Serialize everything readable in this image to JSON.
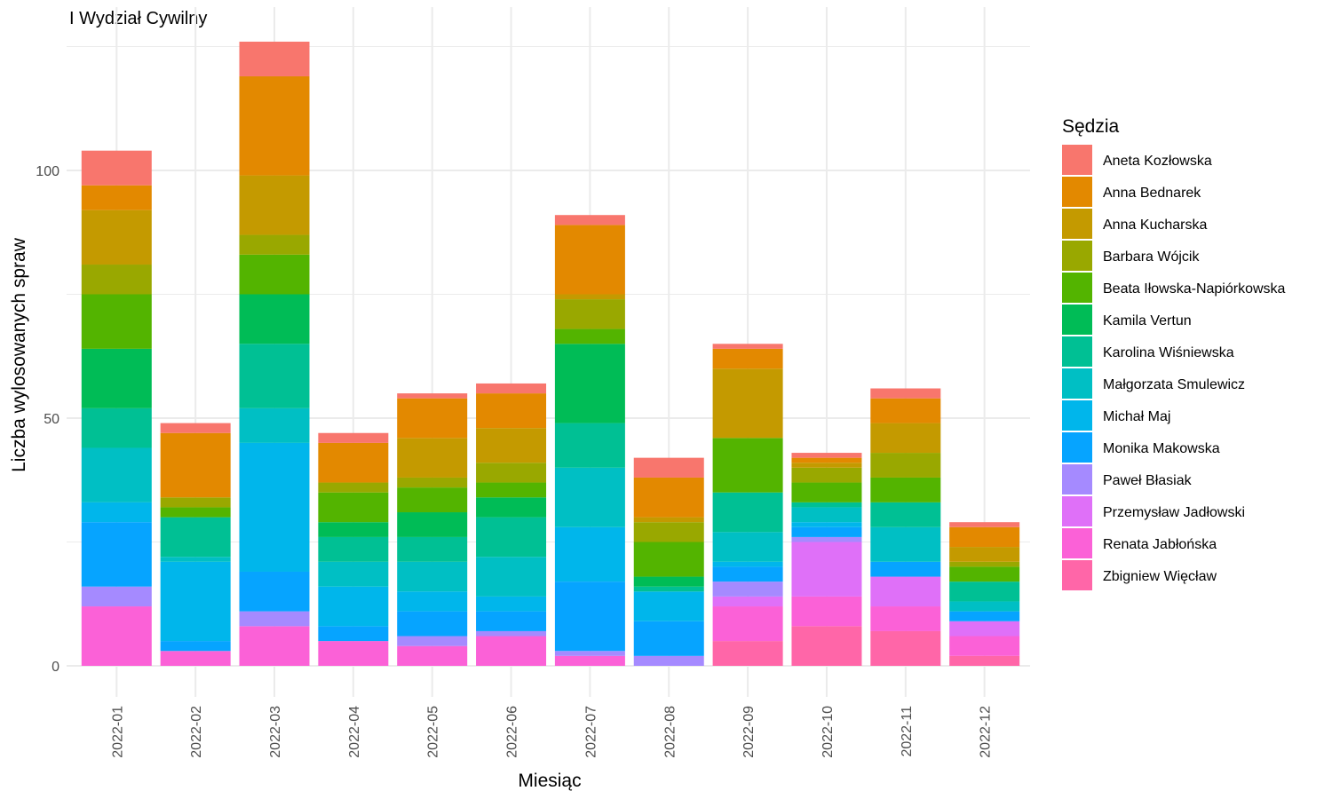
{
  "chart_data": {
    "type": "bar",
    "stacked": true,
    "title": "I Wydział Cywilny",
    "xlabel": "Miesiąc",
    "ylabel": "Liczba wylosowanych spraw",
    "ylim": [
      0,
      127
    ],
    "yticks": [
      0,
      50,
      100
    ],
    "grid": true,
    "legend_title": "Sędzia",
    "legend_position": "right",
    "categories": [
      "2022-01",
      "2022-02",
      "2022-03",
      "2022-04",
      "2022-05",
      "2022-06",
      "2022-07",
      "2022-08",
      "2022-09",
      "2022-10",
      "2022-11",
      "2022-12"
    ],
    "series": [
      {
        "name": "Aneta Kozłowska",
        "color": "#F8766D",
        "values": [
          7,
          2,
          7,
          2,
          1,
          2,
          2,
          4,
          1,
          1,
          2,
          1
        ]
      },
      {
        "name": "Anna Bednarek",
        "color": "#E38900",
        "values": [
          5,
          13,
          20,
          8,
          8,
          7,
          14,
          8,
          4,
          1,
          5,
          4
        ]
      },
      {
        "name": "Anna Kucharska",
        "color": "#C49A00",
        "values": [
          11,
          0,
          12,
          0,
          8,
          7,
          1,
          1,
          14,
          1,
          6,
          3
        ]
      },
      {
        "name": "Barbara Wójcik",
        "color": "#99A800",
        "values": [
          6,
          2,
          4,
          2,
          2,
          4,
          6,
          4,
          0,
          3,
          5,
          1
        ]
      },
      {
        "name": "Beata Iłowska-Napiórkowska",
        "color": "#53B400",
        "values": [
          11,
          2,
          8,
          6,
          5,
          3,
          3,
          7,
          11,
          4,
          5,
          3
        ]
      },
      {
        "name": "Kamila Vertun",
        "color": "#00BC56",
        "values": [
          12,
          0,
          10,
          3,
          5,
          4,
          16,
          2,
          0,
          0,
          0,
          0
        ]
      },
      {
        "name": "Karolina Wiśniewska",
        "color": "#00C094",
        "values": [
          8,
          8,
          13,
          5,
          5,
          8,
          9,
          1,
          8,
          1,
          5,
          4
        ]
      },
      {
        "name": "Małgorzata Smulewicz",
        "color": "#00BFC4",
        "values": [
          11,
          1,
          7,
          5,
          6,
          8,
          12,
          0,
          6,
          3,
          7,
          2
        ]
      },
      {
        "name": "Michał Maj",
        "color": "#00B6EB",
        "values": [
          4,
          16,
          26,
          8,
          4,
          3,
          11,
          6,
          1,
          1,
          0,
          0
        ]
      },
      {
        "name": "Monika Makowska",
        "color": "#06A4FF",
        "values": [
          13,
          2,
          8,
          3,
          5,
          4,
          14,
          7,
          3,
          2,
          3,
          2
        ]
      },
      {
        "name": "Paweł Błasiak",
        "color": "#A58AFF",
        "values": [
          4,
          0,
          3,
          0,
          2,
          1,
          1,
          2,
          3,
          1,
          0,
          0
        ]
      },
      {
        "name": "Przemysław Jadłowski",
        "color": "#DF70F8",
        "values": [
          0,
          0,
          0,
          0,
          0,
          0,
          0,
          0,
          2,
          11,
          6,
          3
        ]
      },
      {
        "name": "Renata Jabłońska",
        "color": "#FB61D7",
        "values": [
          12,
          3,
          8,
          5,
          4,
          6,
          2,
          0,
          7,
          6,
          5,
          4
        ]
      },
      {
        "name": "Zbigniew Więcław",
        "color": "#FF66A8",
        "values": [
          0,
          0,
          0,
          0,
          0,
          0,
          0,
          0,
          5,
          8,
          7,
          2
        ]
      }
    ]
  }
}
